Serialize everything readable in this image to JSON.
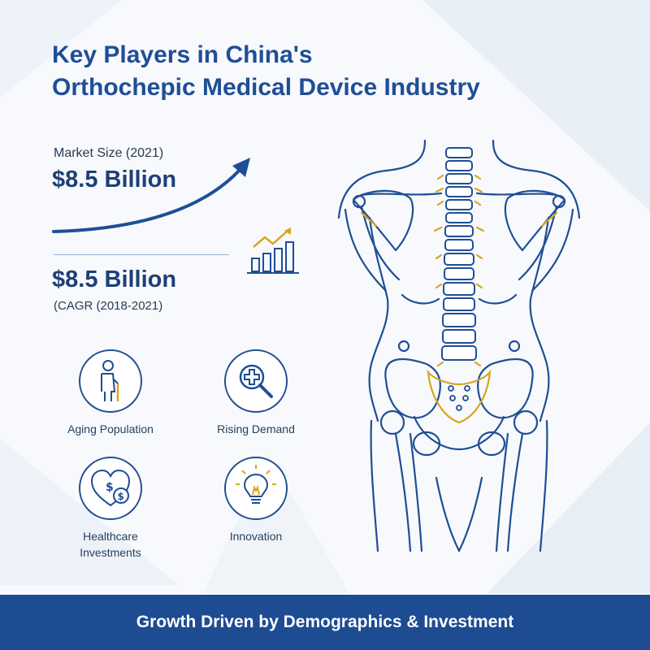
{
  "title": {
    "line1": "Key Players in China's",
    "line2": "Orthochepic Medical Device Industry"
  },
  "market_size": {
    "label": "Market Size (2021)",
    "value": "$8.5 Billion"
  },
  "cagr": {
    "value": "$8.5 Billion",
    "label": "(CAGR (2018-2021)"
  },
  "drivers": [
    {
      "label": "Aging Population",
      "icon": "elderly-person-icon"
    },
    {
      "label": "Rising Demand",
      "icon": "magnifier-medical-cross-icon"
    },
    {
      "label": "Healthcare Investments",
      "icon": "heart-dollar-icon"
    },
    {
      "label": "Innovation",
      "icon": "lightbulb-icon"
    }
  ],
  "footer": {
    "text": "Growth Driven by Demographics & Investment"
  },
  "colors": {
    "primary": "#1f4e96",
    "footer_bg": "#1d4c93",
    "accent_gold": "#d9a520",
    "background": "#f7f9fc"
  }
}
